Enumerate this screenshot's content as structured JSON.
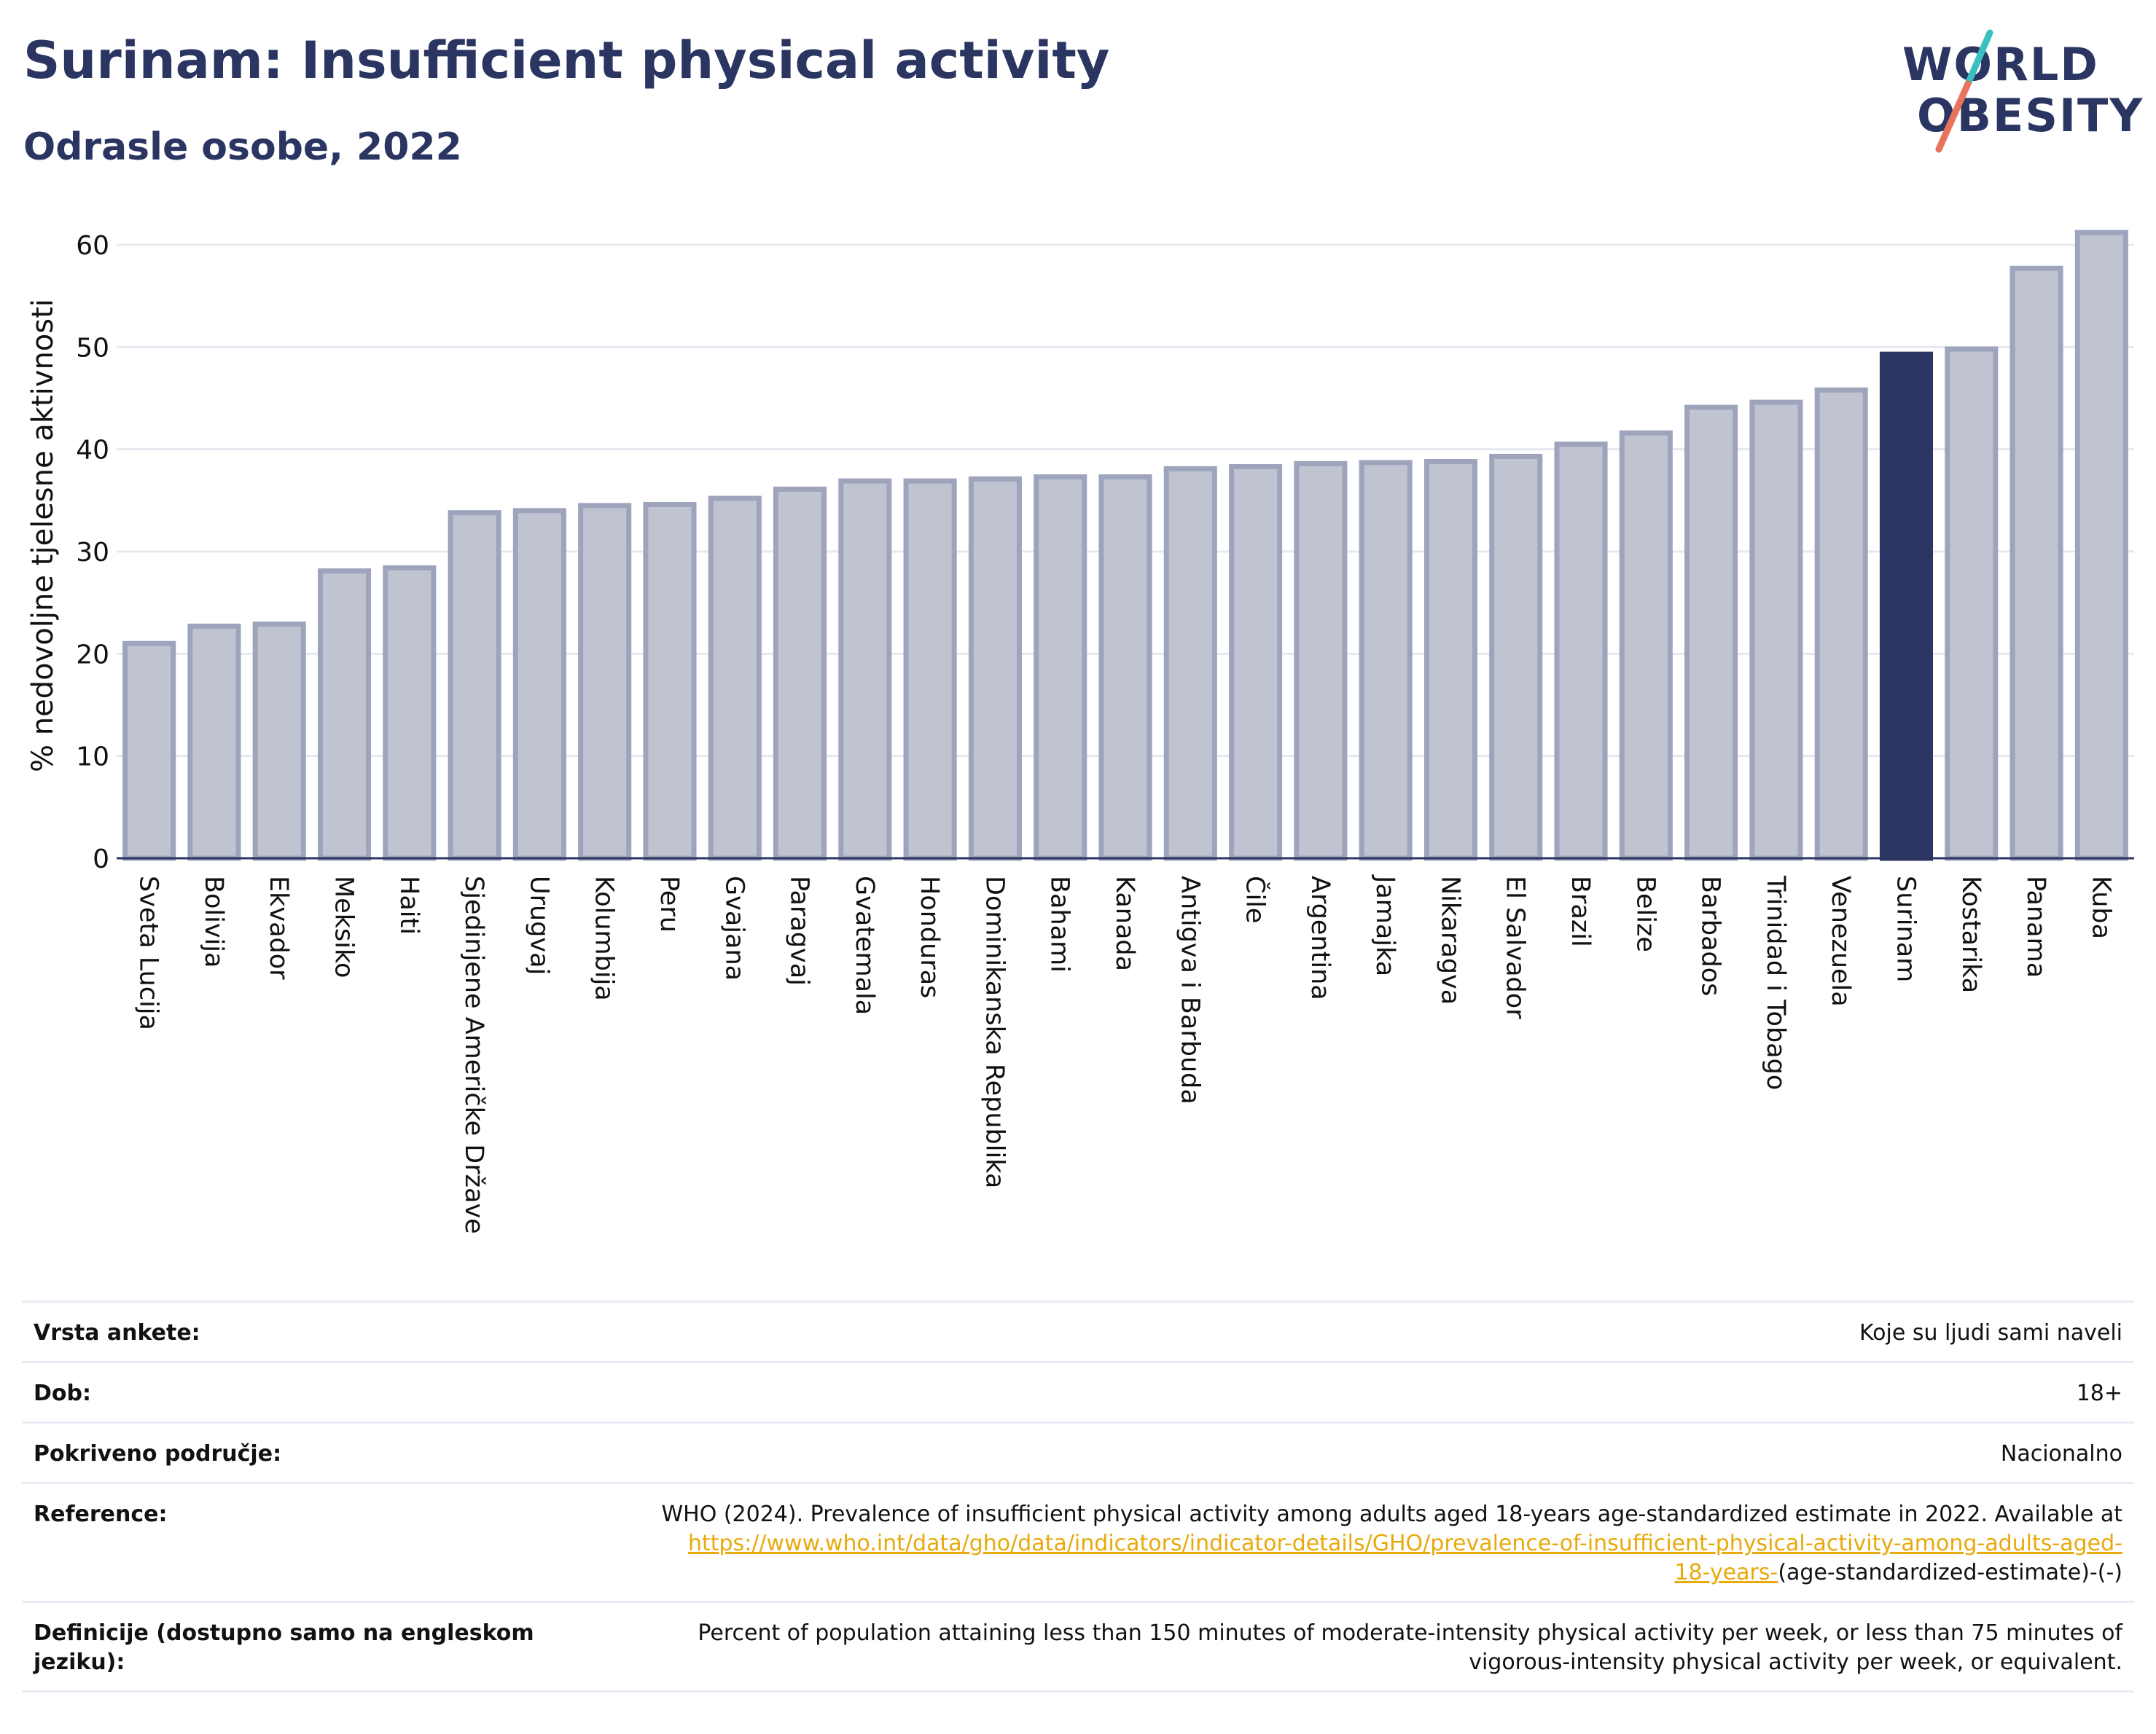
{
  "header": {
    "title": "Surinam: Insufficient physical activity",
    "subtitle": "Odrasle osobe, 2022"
  },
  "logo": {
    "line1": "WORLD",
    "line2": "OBESITY",
    "color_dark": "#2b3562",
    "color_teal": "#3bbfc0",
    "color_coral": "#e8735a"
  },
  "chart_data": {
    "type": "bar",
    "ylabel": "% nedovoljne tjelesne aktivnosti",
    "ylim": [
      0,
      63
    ],
    "yticks": [
      0,
      10,
      20,
      30,
      40,
      50,
      60
    ],
    "grid": true,
    "highlight": "Surinam",
    "colors": {
      "bar": "#c0c4d1",
      "bar_edge": "#9ea4bc",
      "highlight": "#2b3562"
    },
    "categories": [
      "Sveta Lucija",
      "Bolivija",
      "Ekvador",
      "Meksiko",
      "Haiti",
      "Sjedinjene Američke Države",
      "Urugvaj",
      "Kolumbija",
      "Peru",
      "Gvajana",
      "Paragvaj",
      "Gvatemala",
      "Honduras",
      "Dominikanska Republika",
      "Bahami",
      "Kanada",
      "Antigva i Barbuda",
      "Čile",
      "Argentina",
      "Jamajka",
      "Nikaragva",
      "El Salvador",
      "Brazil",
      "Belize",
      "Barbados",
      "Trinidad i Tobago",
      "Venezuela",
      "Surinam",
      "Kostarika",
      "Panama",
      "Kuba"
    ],
    "values": [
      21.0,
      22.7,
      22.9,
      28.1,
      28.4,
      33.8,
      34.0,
      34.5,
      34.6,
      35.2,
      36.1,
      36.9,
      36.9,
      37.1,
      37.3,
      37.3,
      38.1,
      38.3,
      38.6,
      38.7,
      38.8,
      39.3,
      40.5,
      41.6,
      44.1,
      44.6,
      45.8,
      49.3,
      49.8,
      57.7,
      61.2
    ]
  },
  "info": {
    "rows": [
      {
        "label": "Vrsta ankete:",
        "value": "Koje su ljudi sami naveli"
      },
      {
        "label": "Dob:",
        "value": "18+"
      },
      {
        "label": "Pokriveno područje:",
        "value": "Nacionalno"
      }
    ],
    "reference": {
      "label": "Reference:",
      "text": "WHO (2024). Prevalence of insufficient physical activity among adults aged 18-years age-standardized estimate in 2022. Available at",
      "link_line1": "https://www.who.int/data/gho/data/indicators/indicator-details/GHO/prevalence-of-insufficient-physical-activity-among-adults-aged-",
      "link_line2": "18-years-",
      "suffix": "(age-standardized-estimate)-(-)"
    },
    "definition": {
      "label": "Definicije (dostupno samo na engleskom jeziku):",
      "value": "Percent of population attaining less than 150 minutes of moderate-intensity physical activity per week, or less than 75 minutes of vigorous-intensity physical activity per week, or equivalent."
    }
  }
}
